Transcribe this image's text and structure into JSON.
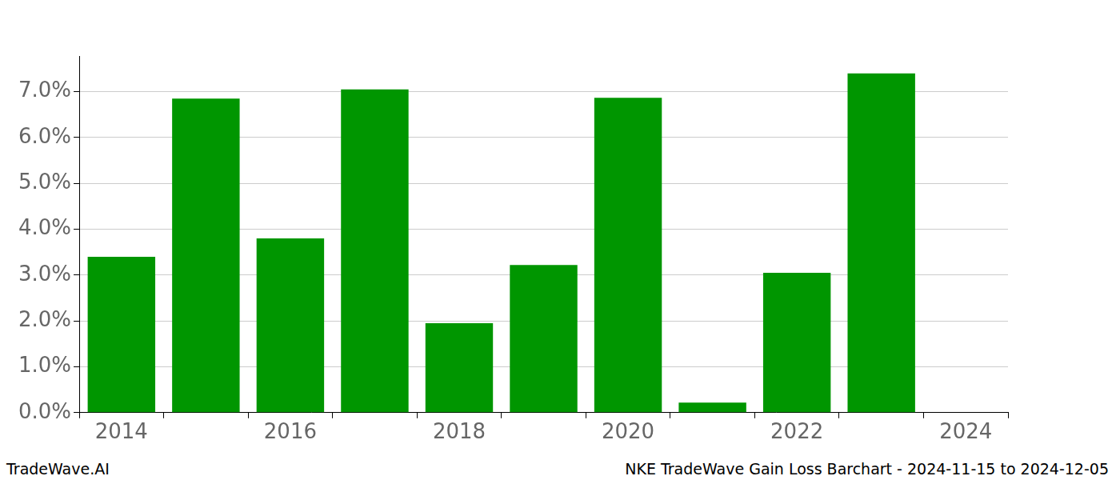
{
  "chart_data": {
    "type": "bar",
    "title": "NKE TradeWave Gain Loss Barchart - 2024-11-15 to 2024-12-05",
    "annotations": [
      "TradeWave.AI"
    ],
    "categories": [
      "2014",
      null,
      "2016",
      null,
      "2018",
      null,
      "2020",
      null,
      "2022",
      null,
      "2024"
    ],
    "values": [
      3.4,
      6.85,
      3.8,
      7.05,
      1.95,
      3.22,
      6.87,
      0.22,
      3.05,
      7.4,
      null
    ],
    "color": "#009600",
    "ylim": [
      0,
      7.78
    ],
    "yticks": [
      {
        "value": 0,
        "label": "0.0%"
      },
      {
        "value": 1,
        "label": "1.0%"
      },
      {
        "value": 2,
        "label": "2.0%"
      },
      {
        "value": 3,
        "label": "3.0%"
      },
      {
        "value": 4,
        "label": "4.0%"
      },
      {
        "value": 5,
        "label": "5.0%"
      },
      {
        "value": 6,
        "label": "6.0%"
      },
      {
        "value": 7,
        "label": "7.0%"
      }
    ],
    "grid": true
  }
}
